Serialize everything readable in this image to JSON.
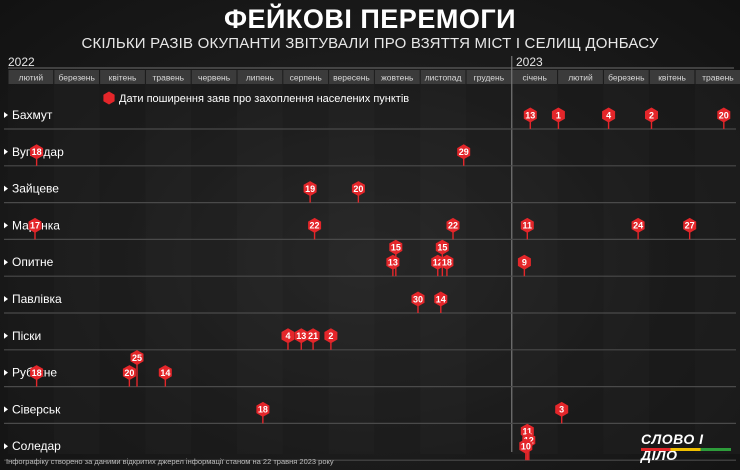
{
  "header": {
    "title": "ФЕЙКОВІ ПЕРЕМОГИ",
    "subtitle": "СКІЛЬКИ РАЗІВ ОКУПАНТИ ЗВІТУВАЛИ ПРО ВЗЯТТЯ МІСТ І СЕЛИЩ ДОНБАСУ"
  },
  "years": [
    "2022",
    "2023"
  ],
  "legend": "Дати поширення заяв про захоплення населених пунктів",
  "footnote": "Інфографіку створено за даними відкритих джерел інформації станом на 22 травня 2023 року",
  "logo": "СЛОВО І ДІЛО",
  "colors": {
    "marker": "#e4262a",
    "row_line": "#4a4a4a",
    "month_bar": "#3b3b3b"
  },
  "chart_data": {
    "type": "scatter",
    "title": "ФЕЙКОВІ ПЕРЕМОГИ",
    "months": [
      "лютий",
      "березень",
      "квітень",
      "травень",
      "червень",
      "липень",
      "серпень",
      "вересень",
      "жовтень",
      "листопад",
      "грудень",
      "січень",
      "лютий",
      "березень",
      "квітень",
      "травень"
    ],
    "month_years": [
      "2022",
      "2022",
      "2022",
      "2022",
      "2022",
      "2022",
      "2022",
      "2022",
      "2022",
      "2022",
      "2022",
      "2023",
      "2023",
      "2023",
      "2023",
      "2023"
    ],
    "rows": [
      "Бахмут",
      "Вугледар",
      "Зайцеве",
      "Мар'їнка",
      "Опитне",
      "Павлівка",
      "Піски",
      "Рубіжне",
      "Сіверськ",
      "Соледар"
    ],
    "points": [
      {
        "row": "Бахмут",
        "date": "2023-01-13",
        "label": "13"
      },
      {
        "row": "Бахмут",
        "date": "2023-02-01",
        "label": "1"
      },
      {
        "row": "Бахмут",
        "date": "2023-03-04",
        "label": "4"
      },
      {
        "row": "Бахмут",
        "date": "2023-04-02",
        "label": "2"
      },
      {
        "row": "Бахмут",
        "date": "2023-05-20",
        "label": "20"
      },
      {
        "row": "Вугледар",
        "date": "2022-02-18",
        "label": "18"
      },
      {
        "row": "Вугледар",
        "date": "2022-11-29",
        "label": "29"
      },
      {
        "row": "Зайцеве",
        "date": "2022-08-19",
        "label": "19"
      },
      {
        "row": "Зайцеве",
        "date": "2022-09-20",
        "label": "20"
      },
      {
        "row": "Мар'їнка",
        "date": "2022-02-17",
        "label": "17"
      },
      {
        "row": "Мар'їнка",
        "date": "2022-08-22",
        "label": "22"
      },
      {
        "row": "Мар'їнка",
        "date": "2022-11-22",
        "label": "22"
      },
      {
        "row": "Мар'їнка",
        "date": "2023-01-11",
        "label": "11"
      },
      {
        "row": "Мар'їнка",
        "date": "2023-03-24",
        "label": "24"
      },
      {
        "row": "Мар'їнка",
        "date": "2023-04-27",
        "label": "27"
      },
      {
        "row": "Опитне",
        "date": "2022-10-15",
        "label": "15",
        "stack": 1
      },
      {
        "row": "Опитне",
        "date": "2022-10-13",
        "label": "13"
      },
      {
        "row": "Опитне",
        "date": "2022-11-15",
        "label": "15",
        "stack": 1
      },
      {
        "row": "Опитне",
        "date": "2022-11-12",
        "label": "12"
      },
      {
        "row": "Опитне",
        "date": "2022-11-18",
        "label": "18"
      },
      {
        "row": "Опитне",
        "date": "2023-01-09",
        "label": "9"
      },
      {
        "row": "Павлівка",
        "date": "2022-10-30",
        "label": "30"
      },
      {
        "row": "Павлівка",
        "date": "2022-11-14",
        "label": "14"
      },
      {
        "row": "Піски",
        "date": "2022-08-04",
        "label": "4"
      },
      {
        "row": "Піски",
        "date": "2022-08-13",
        "label": "13"
      },
      {
        "row": "Піски",
        "date": "2022-08-21",
        "label": "21"
      },
      {
        "row": "Піски",
        "date": "2022-09-02",
        "label": "2"
      },
      {
        "row": "Рубіжне",
        "date": "2022-02-18",
        "label": "18"
      },
      {
        "row": "Рубіжне",
        "date": "2022-04-25",
        "label": "25",
        "stack": 1
      },
      {
        "row": "Рубіжне",
        "date": "2022-04-20",
        "label": "20"
      },
      {
        "row": "Рубіжне",
        "date": "2022-05-14",
        "label": "14"
      },
      {
        "row": "Сіверськ",
        "date": "2022-07-18",
        "label": "18"
      },
      {
        "row": "Сіверськ",
        "date": "2023-02-03",
        "label": "3"
      },
      {
        "row": "Соледар",
        "date": "2023-01-11",
        "label": "11",
        "stack": 1
      },
      {
        "row": "Соледар",
        "date": "2023-01-12",
        "label": "12",
        "stack": 0.4
      },
      {
        "row": "Соледар",
        "date": "2023-01-10",
        "label": "10"
      }
    ]
  }
}
